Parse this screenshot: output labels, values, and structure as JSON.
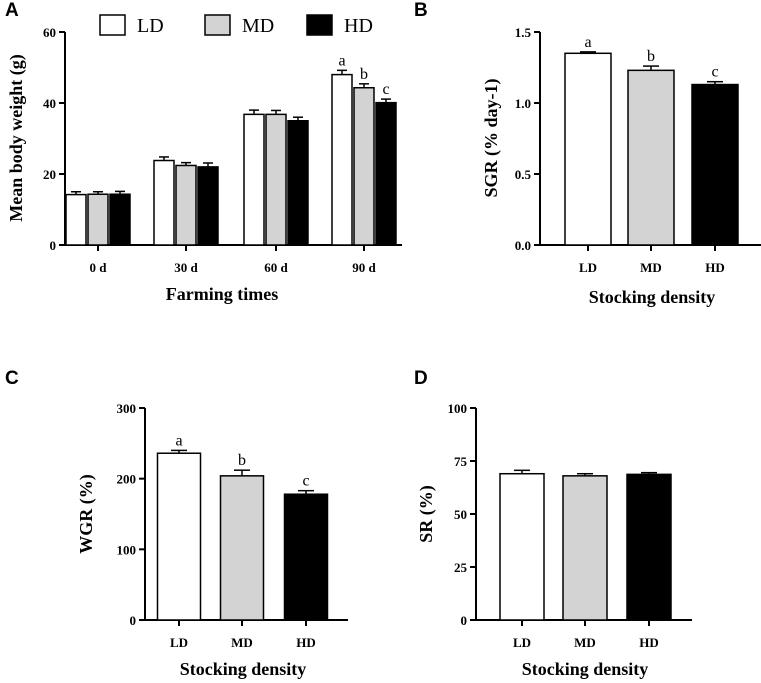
{
  "colors": {
    "LD": "#ffffff",
    "MD": "#d3d3d3",
    "HD": "#000000",
    "axis": "#000000"
  },
  "legend": [
    {
      "label": "LD",
      "group": "LD"
    },
    {
      "label": "MD",
      "group": "MD"
    },
    {
      "label": "HD",
      "group": "HD"
    }
  ],
  "chart_data": [
    {
      "id": "A",
      "panel": "A",
      "type": "bar",
      "categories": [
        "0 d",
        "30 d",
        "60 d",
        "90 d"
      ],
      "series": [
        {
          "name": "LD",
          "values": [
            14.2,
            23.8,
            36.8,
            48.0
          ],
          "errors": [
            0.8,
            1.0,
            1.2,
            1.2
          ],
          "sig": [
            "",
            "",
            "",
            "a"
          ]
        },
        {
          "name": "MD",
          "values": [
            14.3,
            22.4,
            36.8,
            44.3
          ],
          "errors": [
            0.7,
            0.8,
            1.1,
            1.1
          ],
          "sig": [
            "",
            "",
            "",
            "b"
          ]
        },
        {
          "name": "HD",
          "values": [
            14.3,
            22.0,
            35.0,
            40.1
          ],
          "errors": [
            0.8,
            1.1,
            1.0,
            1.0
          ],
          "sig": [
            "",
            "",
            "",
            "c"
          ]
        }
      ],
      "ylabel": "Mean body weight (g)",
      "xlabel": "Farming times",
      "ylim": [
        0,
        60
      ],
      "yticks": [
        0,
        20,
        40,
        60
      ],
      "ytick_labels": [
        "0",
        "20",
        "40",
        "60"
      ]
    },
    {
      "id": "B",
      "panel": "B",
      "type": "bar",
      "categories": [
        "LD",
        "MD",
        "HD"
      ],
      "values": [
        1.35,
        1.23,
        1.13
      ],
      "errors": [
        0.01,
        0.03,
        0.02
      ],
      "sig": [
        "a",
        "b",
        "c"
      ],
      "ylabel": "SGR (% day-1)",
      "xlabel": "Stocking density",
      "ylim": [
        0,
        1.5
      ],
      "yticks": [
        0,
        0.5,
        1.0,
        1.5
      ],
      "ytick_labels": [
        "0.0",
        "0.5",
        "1.0",
        "1.5"
      ]
    },
    {
      "id": "C",
      "panel": "C",
      "type": "bar",
      "categories": [
        "LD",
        "MD",
        "HD"
      ],
      "values": [
        236,
        204,
        178
      ],
      "errors": [
        4,
        8,
        5
      ],
      "sig": [
        "a",
        "b",
        "c"
      ],
      "ylabel": "WGR (%)",
      "xlabel": "Stocking density",
      "ylim": [
        0,
        300
      ],
      "yticks": [
        0,
        100,
        200,
        300
      ],
      "ytick_labels": [
        "0",
        "100",
        "200",
        "300"
      ]
    },
    {
      "id": "D",
      "panel": "D",
      "type": "bar",
      "categories": [
        "LD",
        "MD",
        "HD"
      ],
      "values": [
        69.0,
        68.0,
        68.7
      ],
      "errors": [
        1.6,
        1.0,
        0.8
      ],
      "sig": [
        "",
        "",
        ""
      ],
      "ylabel": "SR (%)",
      "xlabel": "Stocking density",
      "ylim": [
        0,
        100
      ],
      "yticks": [
        0,
        25,
        50,
        75,
        100
      ],
      "ytick_labels": [
        "0",
        "25",
        "50",
        "75",
        "100"
      ]
    }
  ]
}
